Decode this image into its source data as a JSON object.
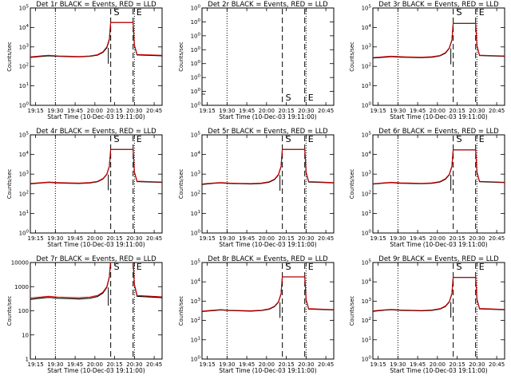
{
  "colors": {
    "events": "#000000",
    "lld": "#e00000",
    "background": "#ffffff"
  },
  "xlabel": "Start Time (10-Dec-03 19:11:00)",
  "ylabel": "Counts/sec",
  "x_tick_labels": [
    "19:15",
    "19:30",
    "19:45",
    "20:00",
    "20:15",
    "20:30",
    "20:45"
  ],
  "marker_labels": {
    "start": "S",
    "end": "E"
  },
  "chart_data": [
    {
      "type": "line",
      "detector": "1r",
      "title": "Det 1r BLACK = Events, RED = LLD",
      "xlim": [
        "19:11",
        "20:51"
      ],
      "ylim": [
        1,
        100000
      ],
      "yscale": "log",
      "y_tick_labels": [
        "10^0",
        "10^1",
        "10^2",
        "10^3",
        "10^4",
        "10^5"
      ],
      "vlines": {
        "dotted": [
          "19:30",
          "20:30"
        ],
        "dashed": [
          "20:12",
          "20:29"
        ]
      },
      "plateau": 18000,
      "series": [
        {
          "name": "Events",
          "x": [
            "19:11",
            "19:20",
            "19:25",
            "19:32",
            "19:40",
            "19:48",
            "19:56",
            "20:02",
            "20:06",
            "20:09",
            "20:11",
            "20:12",
            "20:29",
            "20:30",
            "20:32",
            "20:51"
          ],
          "values": [
            290,
            330,
            350,
            330,
            320,
            310,
            330,
            380,
            520,
            900,
            2400,
            18000,
            18000,
            1200,
            390,
            350
          ]
        },
        {
          "name": "LLD",
          "x": [
            "19:11",
            "19:20",
            "19:25",
            "19:32",
            "19:40",
            "19:48",
            "19:56",
            "20:02",
            "20:06",
            "20:09",
            "20:11",
            "20:12",
            "20:29",
            "20:30",
            "20:32",
            "20:51"
          ],
          "values": [
            310,
            350,
            370,
            345,
            335,
            325,
            345,
            400,
            560,
            1000,
            2700,
            18000,
            18000,
            1300,
            410,
            370
          ]
        }
      ]
    },
    {
      "type": "line",
      "detector": "2r",
      "title": "Det 2r BLACK = Events, RED = LLD",
      "xlim": [
        "19:11",
        "20:51"
      ],
      "ylim": [
        0.9,
        1.1
      ],
      "yscale": "log",
      "y_tick_labels": [
        "10^0",
        "10^0",
        "10^0",
        "10^0",
        "10^0",
        "10^0",
        "10^0",
        "10^0"
      ],
      "vlines": {
        "dotted": [
          "19:30",
          "20:30"
        ],
        "dashed": [
          "20:12",
          "20:29"
        ]
      },
      "plateau": null,
      "series": [
        {
          "name": "Events",
          "x": [],
          "values": []
        },
        {
          "name": "LLD",
          "x": [],
          "values": []
        }
      ]
    },
    {
      "type": "line",
      "detector": "3r",
      "title": "Det 3r BLACK = Events, RED = LLD",
      "xlim": [
        "19:11",
        "20:51"
      ],
      "ylim": [
        1,
        100000
      ],
      "yscale": "log",
      "y_tick_labels": [
        "10^0",
        "10^1",
        "10^2",
        "10^3",
        "10^4",
        "10^5"
      ],
      "vlines": {
        "dotted": [
          "19:30",
          "20:30"
        ],
        "dashed": [
          "20:12",
          "20:29"
        ]
      },
      "plateau": 16000,
      "series": [
        {
          "name": "Events",
          "x": [
            "19:11",
            "19:20",
            "19:25",
            "19:32",
            "19:40",
            "19:48",
            "19:56",
            "20:02",
            "20:06",
            "20:09",
            "20:11",
            "20:12",
            "20:29",
            "20:30",
            "20:32",
            "20:51"
          ],
          "values": [
            270,
            300,
            320,
            300,
            290,
            285,
            300,
            350,
            480,
            850,
            2200,
            16000,
            16000,
            1100,
            360,
            330
          ]
        },
        {
          "name": "LLD",
          "x": [
            "19:11",
            "19:20",
            "19:25",
            "19:32",
            "19:40",
            "19:48",
            "19:56",
            "20:02",
            "20:06",
            "20:09",
            "20:11",
            "20:12",
            "20:29",
            "20:30",
            "20:32",
            "20:51"
          ],
          "values": [
            285,
            315,
            335,
            315,
            305,
            300,
            315,
            365,
            510,
            900,
            2400,
            16000,
            16000,
            1200,
            380,
            345
          ]
        }
      ]
    },
    {
      "type": "line",
      "detector": "4r",
      "title": "Det 4r BLACK = Events, RED = LLD",
      "xlim": [
        "19:11",
        "20:51"
      ],
      "ylim": [
        1,
        100000
      ],
      "yscale": "log",
      "y_tick_labels": [
        "10^0",
        "10^1",
        "10^2",
        "10^3",
        "10^4",
        "10^5"
      ],
      "vlines": {
        "dotted": [
          "19:30",
          "20:30"
        ],
        "dashed": [
          "20:12",
          "20:29"
        ]
      },
      "plateau": 18000,
      "series": [
        {
          "name": "Events",
          "x": [
            "19:11",
            "19:20",
            "19:25",
            "19:32",
            "19:40",
            "19:48",
            "19:56",
            "20:02",
            "20:06",
            "20:09",
            "20:11",
            "20:12",
            "20:29",
            "20:30",
            "20:32",
            "20:51"
          ],
          "values": [
            320,
            360,
            380,
            355,
            345,
            335,
            355,
            410,
            560,
            950,
            2500,
            18000,
            18000,
            1250,
            420,
            380
          ]
        },
        {
          "name": "LLD",
          "x": [
            "19:11",
            "19:20",
            "19:25",
            "19:32",
            "19:40",
            "19:48",
            "19:56",
            "20:02",
            "20:06",
            "20:09",
            "20:11",
            "20:12",
            "20:29",
            "20:30",
            "20:32",
            "20:51"
          ],
          "values": [
            335,
            375,
            395,
            370,
            360,
            350,
            370,
            430,
            590,
            1000,
            2700,
            18000,
            18000,
            1350,
            440,
            395
          ]
        }
      ]
    },
    {
      "type": "line",
      "detector": "5r",
      "title": "Det 5r BLACK = Events, RED = LLD",
      "xlim": [
        "19:11",
        "20:51"
      ],
      "ylim": [
        1,
        100000
      ],
      "yscale": "log",
      "y_tick_labels": [
        "10^0",
        "10^1",
        "10^2",
        "10^3",
        "10^4",
        "10^5"
      ],
      "vlines": {
        "dotted": [
          "19:30",
          "20:30"
        ],
        "dashed": [
          "20:12",
          "20:29"
        ]
      },
      "plateau": 18000,
      "series": [
        {
          "name": "Events",
          "x": [
            "19:11",
            "19:20",
            "19:25",
            "19:32",
            "19:40",
            "19:48",
            "19:56",
            "20:02",
            "20:06",
            "20:09",
            "20:11",
            "20:12",
            "20:29",
            "20:30",
            "20:32",
            "20:51"
          ],
          "values": [
            300,
            340,
            360,
            335,
            325,
            315,
            335,
            390,
            530,
            900,
            2400,
            18000,
            18000,
            1200,
            400,
            360
          ]
        },
        {
          "name": "LLD",
          "x": [
            "19:11",
            "19:20",
            "19:25",
            "19:32",
            "19:40",
            "19:48",
            "19:56",
            "20:02",
            "20:06",
            "20:09",
            "20:11",
            "20:12",
            "20:29",
            "20:30",
            "20:32",
            "20:51"
          ],
          "values": [
            315,
            355,
            375,
            350,
            340,
            330,
            350,
            410,
            560,
            960,
            2600,
            18000,
            18000,
            1300,
            420,
            375
          ]
        }
      ]
    },
    {
      "type": "line",
      "detector": "6r",
      "title": "Det 6r BLACK = Events, RED = LLD",
      "xlim": [
        "19:11",
        "20:51"
      ],
      "ylim": [
        1,
        100000
      ],
      "yscale": "log",
      "y_tick_labels": [
        "10^0",
        "10^1",
        "10^2",
        "10^3",
        "10^4",
        "10^5"
      ],
      "vlines": {
        "dotted": [
          "19:30",
          "20:30"
        ],
        "dashed": [
          "20:12",
          "20:29"
        ]
      },
      "plateau": 17000,
      "series": [
        {
          "name": "Events",
          "x": [
            "19:11",
            "19:20",
            "19:25",
            "19:32",
            "19:40",
            "19:48",
            "19:56",
            "20:02",
            "20:06",
            "20:09",
            "20:11",
            "20:12",
            "20:29",
            "20:30",
            "20:32",
            "20:51"
          ],
          "values": [
            310,
            350,
            370,
            345,
            335,
            325,
            345,
            400,
            550,
            920,
            2450,
            17000,
            17000,
            1200,
            410,
            370
          ]
        },
        {
          "name": "LLD",
          "x": [
            "19:11",
            "19:20",
            "19:25",
            "19:32",
            "19:40",
            "19:48",
            "19:56",
            "20:02",
            "20:06",
            "20:09",
            "20:11",
            "20:12",
            "20:29",
            "20:30",
            "20:32",
            "20:51"
          ],
          "values": [
            325,
            365,
            385,
            360,
            350,
            340,
            360,
            420,
            580,
            980,
            2650,
            17000,
            17000,
            1300,
            430,
            385
          ]
        }
      ]
    },
    {
      "type": "line",
      "detector": "7r",
      "title": "Det 7r BLACK = Events, RED = LLD",
      "xlim": [
        "19:11",
        "20:51"
      ],
      "ylim": [
        1,
        10000
      ],
      "yscale": "log",
      "y_tick_labels": [
        "1",
        "10",
        "100",
        "1000",
        "10000"
      ],
      "vlines": {
        "dotted": [
          "19:30",
          "20:30"
        ],
        "dashed": [
          "20:12",
          "20:29"
        ]
      },
      "plateau": 12000,
      "series": [
        {
          "name": "Events",
          "x": [
            "19:11",
            "19:20",
            "19:25",
            "19:32",
            "19:40",
            "19:48",
            "19:56",
            "20:02",
            "20:06",
            "20:09",
            "20:11",
            "20:12",
            "20:29",
            "20:30",
            "20:32",
            "20:51"
          ],
          "values": [
            300,
            340,
            360,
            330,
            320,
            310,
            330,
            390,
            540,
            920,
            2500,
            12000,
            12000,
            1200,
            400,
            350
          ]
        },
        {
          "name": "LLD",
          "x": [
            "19:11",
            "19:20",
            "19:25",
            "19:32",
            "19:40",
            "19:48",
            "19:56",
            "20:02",
            "20:06",
            "20:09",
            "20:11",
            "20:12",
            "20:29",
            "20:30",
            "20:32",
            "20:51"
          ],
          "values": [
            340,
            380,
            400,
            370,
            360,
            350,
            370,
            430,
            590,
            1000,
            2700,
            12000,
            12000,
            1300,
            430,
            380
          ]
        }
      ]
    },
    {
      "type": "line",
      "detector": "8r",
      "title": "Det 8r BLACK = Events, RED = LLD",
      "xlim": [
        "19:11",
        "20:51"
      ],
      "ylim": [
        1,
        100000
      ],
      "yscale": "log",
      "y_tick_labels": [
        "10^0",
        "10^1",
        "10^2",
        "10^3",
        "10^4",
        "10^5"
      ],
      "vlines": {
        "dotted": [
          "19:30",
          "20:30"
        ],
        "dashed": [
          "20:12",
          "20:29"
        ]
      },
      "plateau": 18000,
      "series": [
        {
          "name": "Events",
          "x": [
            "19:11",
            "19:20",
            "19:25",
            "19:32",
            "19:40",
            "19:48",
            "19:56",
            "20:02",
            "20:06",
            "20:09",
            "20:11",
            "20:12",
            "20:29",
            "20:30",
            "20:32",
            "20:51"
          ],
          "values": [
            290,
            330,
            350,
            325,
            315,
            305,
            325,
            380,
            520,
            880,
            2350,
            18000,
            18000,
            1150,
            390,
            350
          ]
        },
        {
          "name": "LLD",
          "x": [
            "19:11",
            "19:20",
            "19:25",
            "19:32",
            "19:40",
            "19:48",
            "19:56",
            "20:02",
            "20:06",
            "20:09",
            "20:11",
            "20:12",
            "20:29",
            "20:30",
            "20:32",
            "20:51"
          ],
          "values": [
            305,
            345,
            365,
            340,
            330,
            320,
            340,
            400,
            550,
            940,
            2550,
            18000,
            18000,
            1250,
            410,
            365
          ]
        }
      ]
    },
    {
      "type": "line",
      "detector": "9r",
      "title": "Det 9r BLACK = Events, RED = LLD",
      "xlim": [
        "19:11",
        "20:51"
      ],
      "ylim": [
        1,
        100000
      ],
      "yscale": "log",
      "y_tick_labels": [
        "10^0",
        "10^1",
        "10^2",
        "10^3",
        "10^4",
        "10^5"
      ],
      "vlines": {
        "dotted": [
          "19:30",
          "20:30"
        ],
        "dashed": [
          "20:12",
          "20:29"
        ]
      },
      "plateau": 17000,
      "series": [
        {
          "name": "Events",
          "x": [
            "19:11",
            "19:20",
            "19:25",
            "19:32",
            "19:40",
            "19:48",
            "19:56",
            "20:02",
            "20:06",
            "20:09",
            "20:11",
            "20:12",
            "20:29",
            "20:30",
            "20:32",
            "20:51"
          ],
          "values": [
            300,
            340,
            360,
            335,
            325,
            315,
            335,
            390,
            530,
            900,
            2400,
            17000,
            17000,
            1200,
            400,
            360
          ]
        },
        {
          "name": "LLD",
          "x": [
            "19:11",
            "19:20",
            "19:25",
            "19:32",
            "19:40",
            "19:48",
            "19:56",
            "20:02",
            "20:06",
            "20:09",
            "20:11",
            "20:12",
            "20:29",
            "20:30",
            "20:32",
            "20:51"
          ],
          "values": [
            315,
            355,
            375,
            350,
            340,
            330,
            350,
            410,
            560,
            960,
            2600,
            17000,
            17000,
            1300,
            420,
            375
          ]
        }
      ]
    }
  ]
}
